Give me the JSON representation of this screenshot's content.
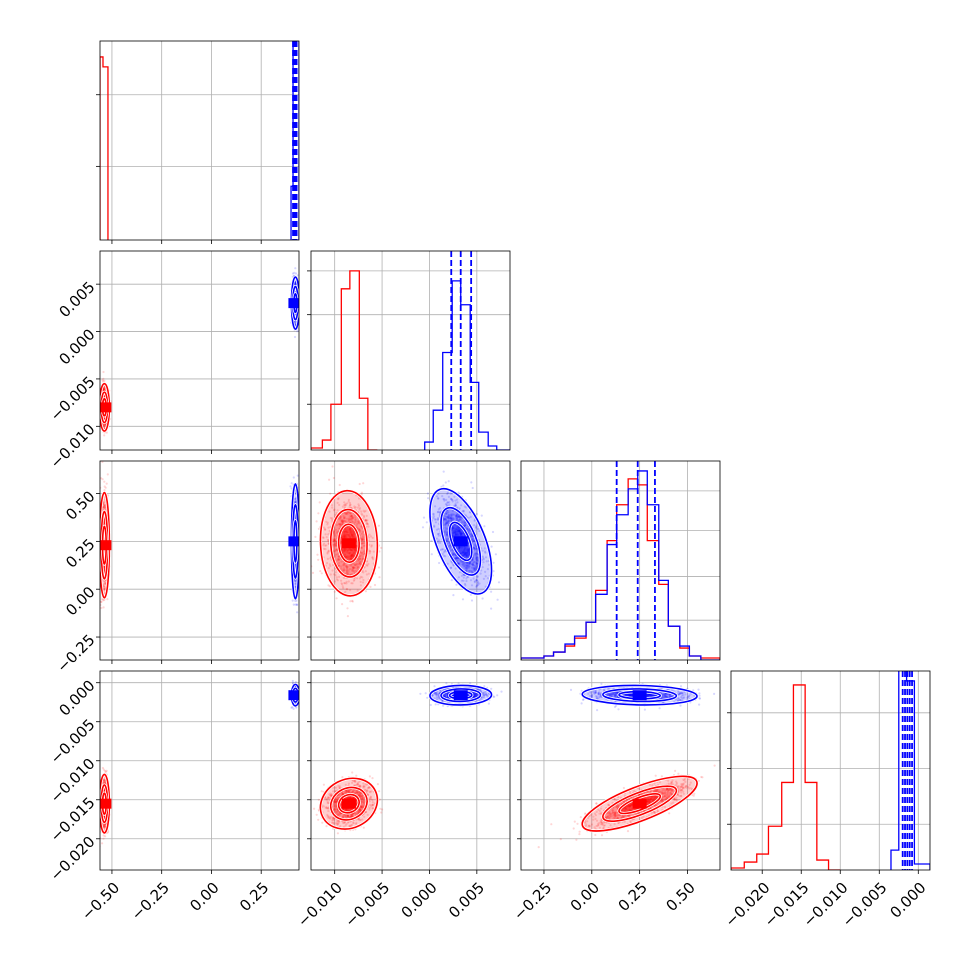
{
  "colors": {
    "series_a": "#ff0000",
    "series_b": "#0000ff",
    "grid": "#b0b0b0",
    "frame": "#000000"
  },
  "chart_data": {
    "type": "corner",
    "grid": true,
    "parameters": [
      {
        "range": [
          -0.56,
          0.44
        ],
        "ticks": [
          -0.5,
          -0.25,
          0.0,
          0.25
        ],
        "tick_labels": [
          "−0.50",
          "−0.25",
          "0.00",
          "0.25"
        ]
      },
      {
        "range": [
          -0.0125,
          0.0085
        ],
        "ticks": [
          -0.01,
          -0.005,
          0.0,
          0.005
        ],
        "tick_labels": [
          "−0.010",
          "−0.005",
          "0.000",
          "0.005"
        ]
      },
      {
        "range": [
          -0.37,
          0.67
        ],
        "ticks": [
          -0.25,
          0.0,
          0.25,
          0.5
        ],
        "tick_labels": [
          "−0.25",
          "0.00",
          "0.25",
          "0.50"
        ]
      },
      {
        "range": [
          -0.024,
          0.0015
        ],
        "ticks": [
          -0.02,
          -0.015,
          -0.01,
          -0.005,
          0.0
        ],
        "tick_labels": [
          "−0.020",
          "−0.015",
          "−0.010",
          "−0.005",
          "0.000"
        ]
      }
    ],
    "histograms": [
      {
        "param": 0,
        "y_ticks": [
          0.37,
          0.73
        ],
        "series": [
          {
            "color": "red",
            "bins": [
              [
                -0.56,
                -0.545,
                0.92
              ],
              [
                -0.545,
                -0.52,
                0.87
              ]
            ]
          },
          {
            "color": "blue",
            "bins": [
              [
                0.4,
                0.41,
                0.27
              ],
              [
                0.41,
                0.44,
                1.15
              ]
            ],
            "quantiles": [
              0.41,
              0.412,
              0.414,
              0.416,
              0.418,
              0.42,
              0.422,
              0.424,
              0.426,
              0.428
            ]
          }
        ]
      },
      {
        "param": 1,
        "y_ticks": [
          0.23,
          0.68,
          0.9
        ],
        "series": [
          {
            "color": "red",
            "bins": [
              [
                -0.0125,
                -0.0113,
                0.01
              ],
              [
                -0.0113,
                -0.0104,
                0.05
              ],
              [
                -0.0104,
                -0.0093,
                0.23
              ],
              [
                -0.0093,
                -0.0084,
                0.81
              ],
              [
                -0.0084,
                -0.0074,
                0.9
              ],
              [
                -0.0074,
                -0.0065,
                0.26
              ],
              [
                -0.0065,
                -0.0055,
                0.0
              ]
            ]
          },
          {
            "color": "blue",
            "bins": [
              [
                -0.0005,
                0.0004,
                0.04
              ],
              [
                0.0004,
                0.0014,
                0.2
              ],
              [
                0.0014,
                0.0024,
                0.49
              ],
              [
                0.0024,
                0.0033,
                0.85
              ],
              [
                0.0033,
                0.0043,
                0.73
              ],
              [
                0.0043,
                0.0052,
                0.34
              ],
              [
                0.0052,
                0.0062,
                0.09
              ],
              [
                0.0062,
                0.0071,
                0.02
              ],
              [
                0.0071,
                0.0085,
                0.0
              ]
            ],
            "quantiles": [
              0.0023,
              0.0033,
              0.0044
            ]
          }
        ]
      },
      {
        "param": 2,
        "y_ticks": [
          0.2,
          0.42,
          0.65,
          0.85
        ],
        "series": [
          {
            "color": "red",
            "bins": [
              [
                -0.37,
                -0.25,
                0.01
              ],
              [
                -0.25,
                -0.2,
                0.02
              ],
              [
                -0.2,
                -0.14,
                0.04
              ],
              [
                -0.14,
                -0.09,
                0.07
              ],
              [
                -0.09,
                -0.03,
                0.11
              ],
              [
                -0.03,
                0.02,
                0.19
              ],
              [
                0.02,
                0.08,
                0.35
              ],
              [
                0.08,
                0.13,
                0.6
              ],
              [
                0.13,
                0.19,
                0.78
              ],
              [
                0.19,
                0.24,
                0.91
              ],
              [
                0.24,
                0.29,
                0.88
              ],
              [
                0.29,
                0.35,
                0.6
              ],
              [
                0.35,
                0.4,
                0.38
              ],
              [
                0.4,
                0.46,
                0.17
              ],
              [
                0.46,
                0.51,
                0.06
              ],
              [
                0.51,
                0.57,
                0.02
              ],
              [
                0.57,
                0.67,
                0.01
              ]
            ]
          },
          {
            "color": "blue",
            "bins": [
              [
                -0.37,
                -0.25,
                0.01
              ],
              [
                -0.25,
                -0.2,
                0.02
              ],
              [
                -0.2,
                -0.14,
                0.04
              ],
              [
                -0.14,
                -0.09,
                0.08
              ],
              [
                -0.09,
                -0.03,
                0.12
              ],
              [
                -0.03,
                0.02,
                0.19
              ],
              [
                0.02,
                0.08,
                0.33
              ],
              [
                0.08,
                0.13,
                0.58
              ],
              [
                0.13,
                0.19,
                0.73
              ],
              [
                0.19,
                0.24,
                0.86
              ],
              [
                0.24,
                0.29,
                0.95
              ],
              [
                0.29,
                0.35,
                0.78
              ],
              [
                0.35,
                0.4,
                0.4
              ],
              [
                0.4,
                0.46,
                0.17
              ],
              [
                0.46,
                0.51,
                0.07
              ],
              [
                0.51,
                0.57,
                0.02
              ],
              [
                0.57,
                0.67,
                0.0
              ]
            ],
            "quantiles": [
              0.13,
              0.24,
              0.33
            ]
          }
        ]
      },
      {
        "param": 3,
        "y_ticks": [
          0.23,
          0.51,
          0.79
        ],
        "series": [
          {
            "color": "red",
            "bins": [
              [
                -0.024,
                -0.0223,
                0.01
              ],
              [
                -0.0223,
                -0.0207,
                0.04
              ],
              [
                -0.0207,
                -0.0192,
                0.08
              ],
              [
                -0.0192,
                -0.0175,
                0.22
              ],
              [
                -0.0175,
                -0.016,
                0.44
              ],
              [
                -0.016,
                -0.0145,
                0.93
              ],
              [
                -0.0145,
                -0.013,
                0.44
              ],
              [
                -0.013,
                -0.0115,
                0.05
              ],
              [
                -0.0115,
                -0.01,
                0.0
              ]
            ]
          },
          {
            "color": "blue",
            "bins": [
              [
                -0.0035,
                -0.0025,
                0.1
              ],
              [
                -0.0025,
                -0.0015,
                1.04
              ],
              [
                -0.0015,
                -0.0005,
                0.95
              ],
              [
                -0.0005,
                0.0015,
                0.03
              ]
            ],
            "quantiles": [
              -0.002,
              -0.0017,
              -0.0014,
              -0.0011,
              -0.0008
            ]
          }
        ]
      }
    ],
    "scatter": [
      {
        "row": 1,
        "col": 0,
        "series": [
          {
            "color": "red",
            "center": [
              -0.538,
              -0.008
            ],
            "sd": [
              0.01,
              0.001
            ],
            "rho": 0.0
          },
          {
            "color": "blue",
            "center": [
              0.422,
              0.003
            ],
            "sd": [
              0.008,
              0.0011
            ],
            "rho": 0.0
          }
        ]
      },
      {
        "row": 2,
        "col": 0,
        "series": [
          {
            "color": "red",
            "center": [
              -0.538,
              0.23
            ],
            "sd": [
              0.01,
              0.11
            ],
            "rho": 0.0
          },
          {
            "color": "blue",
            "center": [
              0.422,
              0.25
            ],
            "sd": [
              0.008,
              0.12
            ],
            "rho": 0.0
          }
        ]
      },
      {
        "row": 2,
        "col": 1,
        "series": [
          {
            "color": "red",
            "center": [
              -0.0085,
              0.24
            ],
            "sd": [
              0.0012,
              0.11
            ],
            "rho": -0.05
          },
          {
            "color": "blue",
            "center": [
              0.0033,
              0.25
            ],
            "sd": [
              0.0013,
              0.11
            ],
            "rho": -0.55
          }
        ]
      },
      {
        "row": 3,
        "col": 0,
        "series": [
          {
            "color": "red",
            "center": [
              -0.538,
              -0.0155
            ],
            "sd": [
              0.01,
              0.0015
            ],
            "rho": 0.0
          },
          {
            "color": "blue",
            "center": [
              0.422,
              -0.0016
            ],
            "sd": [
              0.008,
              0.00055
            ],
            "rho": 0.0
          }
        ]
      },
      {
        "row": 3,
        "col": 1,
        "series": [
          {
            "color": "red",
            "center": [
              -0.0085,
              -0.0155
            ],
            "sd": [
              0.0012,
              0.0013
            ],
            "rho": 0.15
          },
          {
            "color": "blue",
            "center": [
              0.0033,
              -0.0016
            ],
            "sd": [
              0.0013,
              0.0005
            ],
            "rho": 0.05
          }
        ]
      },
      {
        "row": 3,
        "col": 2,
        "series": [
          {
            "color": "red",
            "center": [
              0.25,
              -0.0155
            ],
            "sd": [
              0.12,
              0.0014
            ],
            "rho": 0.75
          },
          {
            "color": "blue",
            "center": [
              0.25,
              -0.0016
            ],
            "sd": [
              0.12,
              0.0005
            ],
            "rho": -0.1
          }
        ]
      }
    ]
  }
}
